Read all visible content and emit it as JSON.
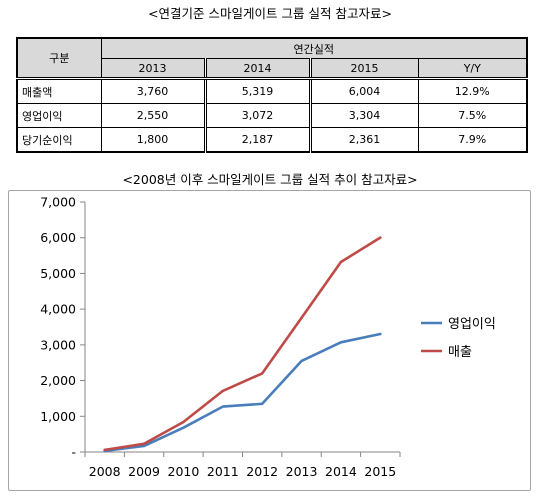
{
  "titles": {
    "table_title": "<연결기준 스마일게이트 그룹 실적 참고자료>",
    "chart_title": "<2008년 이후 스마일게이트 그룹 실적 추이 참고자료>"
  },
  "table": {
    "category_header": "구분",
    "group_header": "연간실적",
    "columns": [
      "2013",
      "2014",
      "2015",
      "Y/Y"
    ],
    "rows": [
      {
        "label": "매출액",
        "values": [
          "3,760",
          "5,319",
          "6,004",
          "12.9%"
        ]
      },
      {
        "label": "영업이익",
        "values": [
          "2,550",
          "3,072",
          "3,304",
          "7.5%"
        ]
      },
      {
        "label": "당기순이익",
        "values": [
          "1,800",
          "2,187",
          "2,361",
          "7.9%"
        ]
      }
    ]
  },
  "chart_data": {
    "type": "line",
    "x": [
      "2008",
      "2009",
      "2010",
      "2011",
      "2012",
      "2013",
      "2014",
      "2015"
    ],
    "series": [
      {
        "name": "영업이익",
        "color": "#4a7ebb",
        "values": [
          30,
          170,
          680,
          1270,
          1350,
          2550,
          3072,
          3304
        ]
      },
      {
        "name": "매출",
        "color": "#be4b48",
        "values": [
          60,
          230,
          840,
          1710,
          2200,
          3760,
          5319,
          6004
        ]
      }
    ],
    "ylim": [
      0,
      7000
    ],
    "y_ticks": [
      0,
      1000,
      2000,
      3000,
      4000,
      5000,
      6000,
      7000
    ],
    "y_tick_labels": [
      "-",
      "1,000",
      "2,000",
      "3,000",
      "4,000",
      "5,000",
      "6,000",
      "7,000"
    ],
    "grid": false,
    "legend": "right",
    "axis_color": "#868686"
  }
}
